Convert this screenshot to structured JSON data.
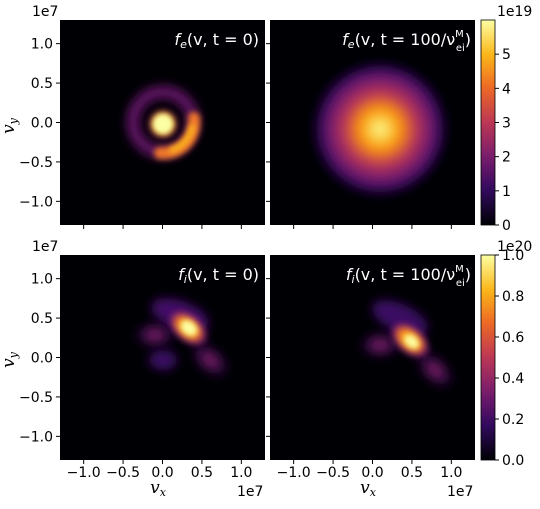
{
  "chart_data": [
    {
      "type": "heatmap",
      "panel": "top-left",
      "title": "f_e(v, t = 0)",
      "title_parts": {
        "sym": "f",
        "sub": "e",
        "args": "(v, t = 0)"
      },
      "xlabel": "",
      "ylabel": "v_y",
      "xlim": [
        -1.3,
        1.3
      ],
      "ylim": [
        -1.3,
        1.3
      ],
      "x_ticks": [
        "−1.0",
        "−0.5",
        "0.0",
        "0.5",
        "1.0"
      ],
      "y_ticks": [
        "−1.0",
        "−0.5",
        "0.0",
        "0.5",
        "1.0"
      ],
      "x_offset": "",
      "y_offset": "1e7",
      "colormap": "inferno",
      "features": [
        {
          "shape": "gaussian",
          "cx": 0.0,
          "cy": 0.0,
          "sigma": 0.09,
          "level": 1.0
        },
        {
          "shape": "ring",
          "radius": 0.38,
          "width": 0.12,
          "level": 0.35
        },
        {
          "shape": "arc-crescent",
          "radius": 0.38,
          "center_angle_deg": -40,
          "width": 0.12,
          "level": 0.55
        }
      ]
    },
    {
      "type": "heatmap",
      "panel": "top-right",
      "title": "f_e(v, t = 100/ν_ei^M)",
      "title_parts": {
        "sym": "f",
        "sub": "e",
        "args": "(v, t = 100/ν",
        "nusup": "M",
        "nusub": "ei",
        "tail": ")"
      },
      "xlim": [
        -1.3,
        1.3
      ],
      "ylim": [
        -1.3,
        1.3
      ],
      "colormap": "inferno",
      "features": [
        {
          "shape": "gaussian",
          "cx": 0.0,
          "cy": 0.0,
          "sigma": 0.3,
          "level": 1.0
        }
      ]
    },
    {
      "type": "heatmap",
      "panel": "bottom-left",
      "title": "f_i(v, t = 0)",
      "title_parts": {
        "sym": "f",
        "sub": "i",
        "args": "(v, t = 0)"
      },
      "xlabel": "v_x",
      "ylabel": "v_y",
      "xlim": [
        -1.3,
        1.3
      ],
      "ylim": [
        -1.3,
        1.3
      ],
      "x_ticks": [
        "−1.0",
        "−0.5",
        "0.0",
        "0.5",
        "1.0"
      ],
      "y_ticks": [
        "−1.0",
        "−0.5",
        "0.0",
        "0.5",
        "1.0"
      ],
      "x_offset": "1e7",
      "y_offset": "1e7",
      "colormap": "inferno",
      "features": [
        {
          "shape": "gaussian",
          "cx": 0.35,
          "cy": 0.38,
          "sigma": 0.14,
          "level": 0.9
        },
        {
          "shape": "gaussian",
          "cx": 0.05,
          "cy": 0.5,
          "sigma": 0.2,
          "level": 0.45
        },
        {
          "shape": "gaussian",
          "cx": 0.55,
          "cy": 0.05,
          "sigma": 0.15,
          "level": 0.3
        },
        {
          "shape": "gaussian",
          "cx": -0.1,
          "cy": 0.1,
          "sigma": 0.15,
          "level": 0.25
        }
      ]
    },
    {
      "type": "heatmap",
      "panel": "bottom-right",
      "title": "f_i(v, t = 100/ν_ei^M)",
      "title_parts": {
        "sym": "f",
        "sub": "i",
        "args": "(v, t = 100/ν",
        "nusup": "M",
        "nusub": "ei",
        "tail": ")"
      },
      "xlabel": "v_x",
      "xlim": [
        -1.3,
        1.3
      ],
      "ylim": [
        -1.3,
        1.3
      ],
      "x_ticks": [
        "−1.0",
        "−0.5",
        "0.0",
        "0.5",
        "1.0"
      ],
      "x_offset": "1e7",
      "colormap": "inferno",
      "features": [
        {
          "shape": "gaussian",
          "cx": 0.55,
          "cy": 0.15,
          "sigma": 0.13,
          "level": 0.85
        },
        {
          "shape": "gaussian",
          "cx": 0.35,
          "cy": 0.35,
          "sigma": 0.2,
          "level": 0.4
        },
        {
          "shape": "gaussian",
          "cx": 0.8,
          "cy": -0.1,
          "sigma": 0.15,
          "level": 0.3
        }
      ]
    }
  ],
  "colorbars": [
    {
      "name": "colorbar-electrons",
      "offset": "1e19",
      "range": [
        0,
        6
      ],
      "ticks": [
        "0",
        "1",
        "2",
        "3",
        "4",
        "5"
      ],
      "tick_values": [
        0,
        1,
        2,
        3,
        4,
        5
      ],
      "max": 5.9
    },
    {
      "name": "colorbar-ions",
      "offset": "1e20",
      "range": [
        0,
        1.0
      ],
      "ticks": [
        "0.0",
        "0.2",
        "0.4",
        "0.6",
        "0.8",
        "1.0"
      ],
      "tick_values": [
        0,
        0.2,
        0.4,
        0.6,
        0.8,
        1.0
      ],
      "max": 1.0
    }
  ],
  "colors": {
    "colormap_stops": [
      "#000004",
      "#320a5e",
      "#781c6d",
      "#bc3754",
      "#ed6925",
      "#fbb61a",
      "#fcffa4"
    ]
  }
}
